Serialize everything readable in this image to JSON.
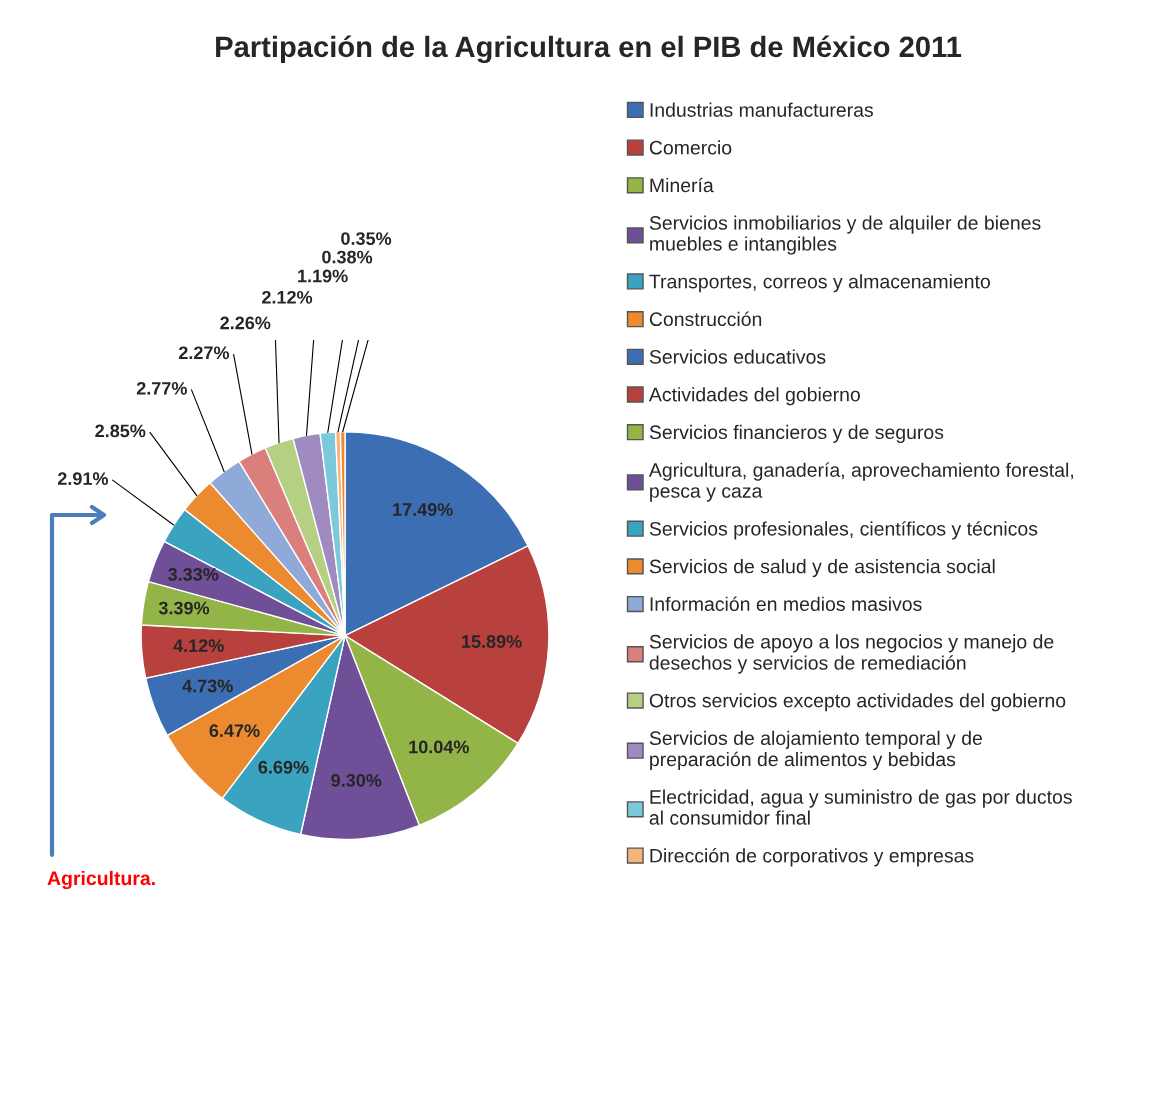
{
  "chart_data": {
    "type": "pie",
    "title": "Partipación de la Agricultura en el PIB de México 2011",
    "categories": [
      "Industrias manufactureras",
      "Comercio",
      "Minería",
      "Servicios inmobiliarios y de alquiler de bienes\nmuebles e intangibles",
      "Transportes, correos y almacenamiento",
      "Construcción",
      "Servicios educativos",
      "Actividades del gobierno",
      "Servicios financieros y de seguros",
      "Agricultura, ganadería, aprovechamiento forestal,\npesca y caza",
      "Servicios profesionales, científicos y técnicos",
      "Servicios de salud y de asistencia social",
      "Información en medios masivos",
      "Servicios de apoyo a los negocios y manejo de\ndesechos y servicios de remediación",
      "Otros servicios excepto actividades del gobierno",
      "Servicios de alojamiento temporal y de\npreparación de alimentos y bebidas",
      "Electricidad, agua y suministro de gas por ductos\nal consumidor final",
      "Dirección de corporativos y empresas",
      null
    ],
    "values": [
      17.49,
      15.89,
      10.04,
      9.3,
      6.69,
      6.47,
      4.73,
      4.12,
      3.39,
      3.33,
      2.91,
      2.85,
      2.77,
      2.27,
      2.26,
      2.12,
      1.19,
      0.38,
      0.35
    ],
    "value_labels": [
      "17.49%",
      "15.89%",
      "10.04%",
      "9.30%",
      "6.69%",
      "6.47%",
      "4.73%",
      "4.12%",
      "3.39%",
      "3.33%",
      "2.91%",
      "2.85%",
      "2.77%",
      "2.27%",
      "2.26%",
      "2.12%",
      "1.19%",
      "0.38%",
      "0.35%"
    ],
    "colors": [
      "#3c6eb4",
      "#b8403d",
      "#93b447",
      "#6f4f97",
      "#3aa3c0",
      "#eb8a2f",
      "#3c6eb4",
      "#b8403d",
      "#93b447",
      "#6f4f97",
      "#3aa3c0",
      "#eb8a2f",
      "#8fa9d8",
      "#db7f7d",
      "#b5cf83",
      "#a08bc0",
      "#7dc9dc",
      "#f5b47c",
      "#eb8a2f"
    ],
    "legend": "right",
    "annotations": [
      "Agricultura."
    ]
  }
}
